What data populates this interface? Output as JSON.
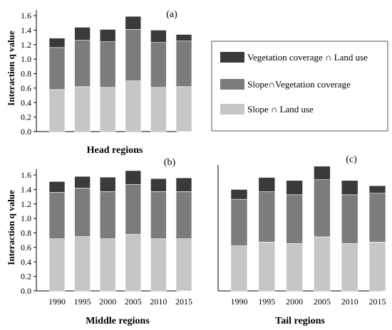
{
  "chart_data": [
    {
      "type": "bar",
      "stacked": true,
      "panel_label": "(a)",
      "region_label": "Head regions",
      "ylabel": "Interaction q value",
      "ylim": [
        0,
        1.6
      ],
      "yticks": [
        "0.0",
        "0.2",
        "0.4",
        "0.6",
        "0.8",
        "1.0",
        "1.2",
        "1.4",
        "1.6"
      ],
      "categories": [
        "1990",
        "1995",
        "2000",
        "2005",
        "2010",
        "2015"
      ],
      "show_xticks": false,
      "series": [
        {
          "name": "Slope ∩ Land use",
          "values": [
            0.58,
            0.62,
            0.61,
            0.7,
            0.61,
            0.62
          ]
        },
        {
          "name": "Slope∩Vegetation coverage",
          "values": [
            0.58,
            0.64,
            0.63,
            0.71,
            0.62,
            0.63
          ]
        },
        {
          "name": "Vegetation coverage ∩ Land use",
          "values": [
            0.13,
            0.18,
            0.17,
            0.18,
            0.17,
            0.09
          ]
        }
      ]
    },
    {
      "type": "bar",
      "stacked": true,
      "panel_label": "(b)",
      "region_label": "Middle regions",
      "ylabel": "Interaction q value",
      "ylim": [
        0,
        1.6
      ],
      "yticks": [
        "0.0",
        "0.2",
        "0.4",
        "0.6",
        "0.8",
        "1.0",
        "1.2",
        "1.4",
        "1.6"
      ],
      "categories": [
        "1990",
        "1995",
        "2000",
        "2005",
        "2010",
        "2015"
      ],
      "show_xticks": true,
      "series": [
        {
          "name": "Slope ∩ Land use",
          "values": [
            0.72,
            0.75,
            0.72,
            0.78,
            0.72,
            0.72
          ]
        },
        {
          "name": "Slope∩Vegetation coverage",
          "values": [
            0.64,
            0.67,
            0.65,
            0.69,
            0.65,
            0.65
          ]
        },
        {
          "name": "Vegetation coverage ∩ Land use",
          "values": [
            0.15,
            0.16,
            0.2,
            0.19,
            0.18,
            0.19
          ]
        }
      ]
    },
    {
      "type": "bar",
      "stacked": true,
      "panel_label": "(c)",
      "region_label": "Tail regions",
      "categories": [
        "1990",
        "1995",
        "2000",
        "2005",
        "2010",
        "2015"
      ],
      "ylim": [
        0,
        1.6
      ],
      "show_xticks": true,
      "series": [
        {
          "name": "Slope ∩ Land use",
          "values": [
            0.6,
            0.65,
            0.63,
            0.72,
            0.63,
            0.65
          ]
        },
        {
          "name": "Slope∩Vegetation coverage",
          "values": [
            0.62,
            0.67,
            0.65,
            0.76,
            0.65,
            0.65
          ]
        },
        {
          "name": "Vegetation coverage ∩ Land use",
          "values": [
            0.13,
            0.19,
            0.19,
            0.18,
            0.19,
            0.1
          ]
        }
      ]
    }
  ],
  "legend": {
    "entries": [
      {
        "label": "Vegetation coverage ∩ Land use",
        "color": "#3a3a3a"
      },
      {
        "label": "Slope∩Vegetation coverage",
        "color": "#7c7c7c"
      },
      {
        "label": "Slope ∩ Land use",
        "color": "#c6c6c6"
      }
    ]
  },
  "colors": [
    "#c6c6c6",
    "#7c7c7c",
    "#3a3a3a"
  ]
}
